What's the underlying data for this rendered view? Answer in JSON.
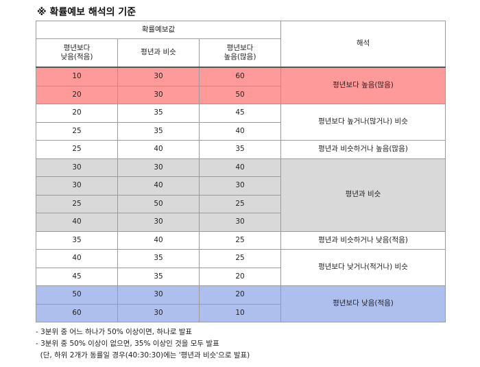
{
  "title": "※ 확률예보 해석의 기준",
  "header": {
    "group": "확률예보값",
    "low": [
      "평년보다",
      "낮음(적음)"
    ],
    "normal": "평년과 비슷",
    "high": [
      "평년보다",
      "높음(많음)"
    ],
    "interp": "해석"
  },
  "rows": [
    [
      "10",
      "30",
      "60"
    ],
    [
      "20",
      "30",
      "50"
    ],
    [
      "20",
      "35",
      "45"
    ],
    [
      "25",
      "35",
      "40"
    ],
    [
      "25",
      "40",
      "35"
    ],
    [
      "30",
      "30",
      "40"
    ],
    [
      "30",
      "40",
      "30"
    ],
    [
      "25",
      "50",
      "25"
    ],
    [
      "40",
      "30",
      "30"
    ],
    [
      "35",
      "40",
      "25"
    ],
    [
      "40",
      "35",
      "25"
    ],
    [
      "45",
      "35",
      "20"
    ],
    [
      "50",
      "30",
      "20"
    ],
    [
      "60",
      "30",
      "10"
    ]
  ],
  "interpretations": [
    "평년보다 높음(많음)",
    "평년보다 높거나(많거나) 비슷",
    "평년과 비슷하거나 높음(많음)",
    "평년과 비슷",
    "평년과 비슷하거나 낮음(적음)",
    "평년보다 낮거나(적거나) 비슷",
    "평년보다 낮음(적음)"
  ],
  "notes": [
    "- 3분위 중 어느 하나가 50% 이상이면, 하나로 발표",
    "- 3분위 중 50% 이상이 없으면, 35% 이상인 것을 모두 발표",
    "  (단, 하위 2개가 동률일 경우(40:30:30)에는 '평년과 비슷'으로 발표)"
  ],
  "colors": {
    "above": "#ff9a9a",
    "normal": "#d9d9d9",
    "below": "#aebfee"
  }
}
